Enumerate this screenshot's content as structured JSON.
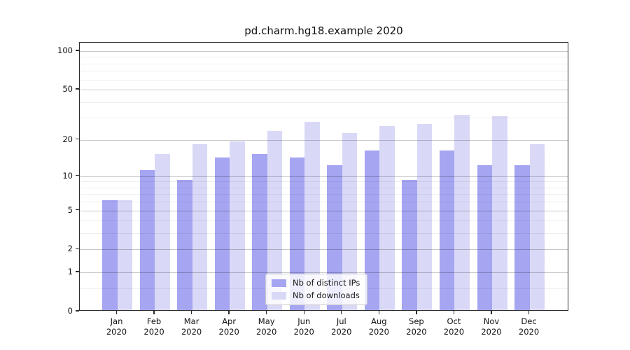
{
  "chart_data": {
    "type": "bar",
    "title": "pd.charm.hg18.example 2020",
    "categories": [
      "Jan 2020",
      "Feb 2020",
      "Mar 2020",
      "Apr 2020",
      "May 2020",
      "Jun 2020",
      "Jul 2020",
      "Aug 2020",
      "Sep 2020",
      "Oct 2020",
      "Nov 2020",
      "Dec 2020"
    ],
    "series": [
      {
        "name": "Nb of distinct IPs",
        "color": "#a5a5f2",
        "values": [
          6,
          11,
          9,
          14,
          15,
          14,
          12,
          16,
          9,
          16,
          12,
          12
        ]
      },
      {
        "name": "Nb of downloads",
        "color": "#d9d9f7",
        "values": [
          6,
          15,
          18,
          19,
          23,
          27,
          22,
          25,
          26,
          31,
          30,
          18
        ]
      }
    ],
    "xlabel": "",
    "ylabel": "",
    "yscale": "log1p",
    "ylim": [
      0,
      116
    ],
    "yticks_major": [
      0,
      1,
      2,
      5,
      10,
      20,
      50,
      100
    ],
    "yticks_minor": [
      0.5,
      3,
      4,
      6,
      7,
      8,
      9,
      30,
      40,
      60,
      70,
      80,
      90
    ],
    "grid": "horizontal",
    "legend_position": "lower-center",
    "spine_color": "#2b2b2b"
  }
}
